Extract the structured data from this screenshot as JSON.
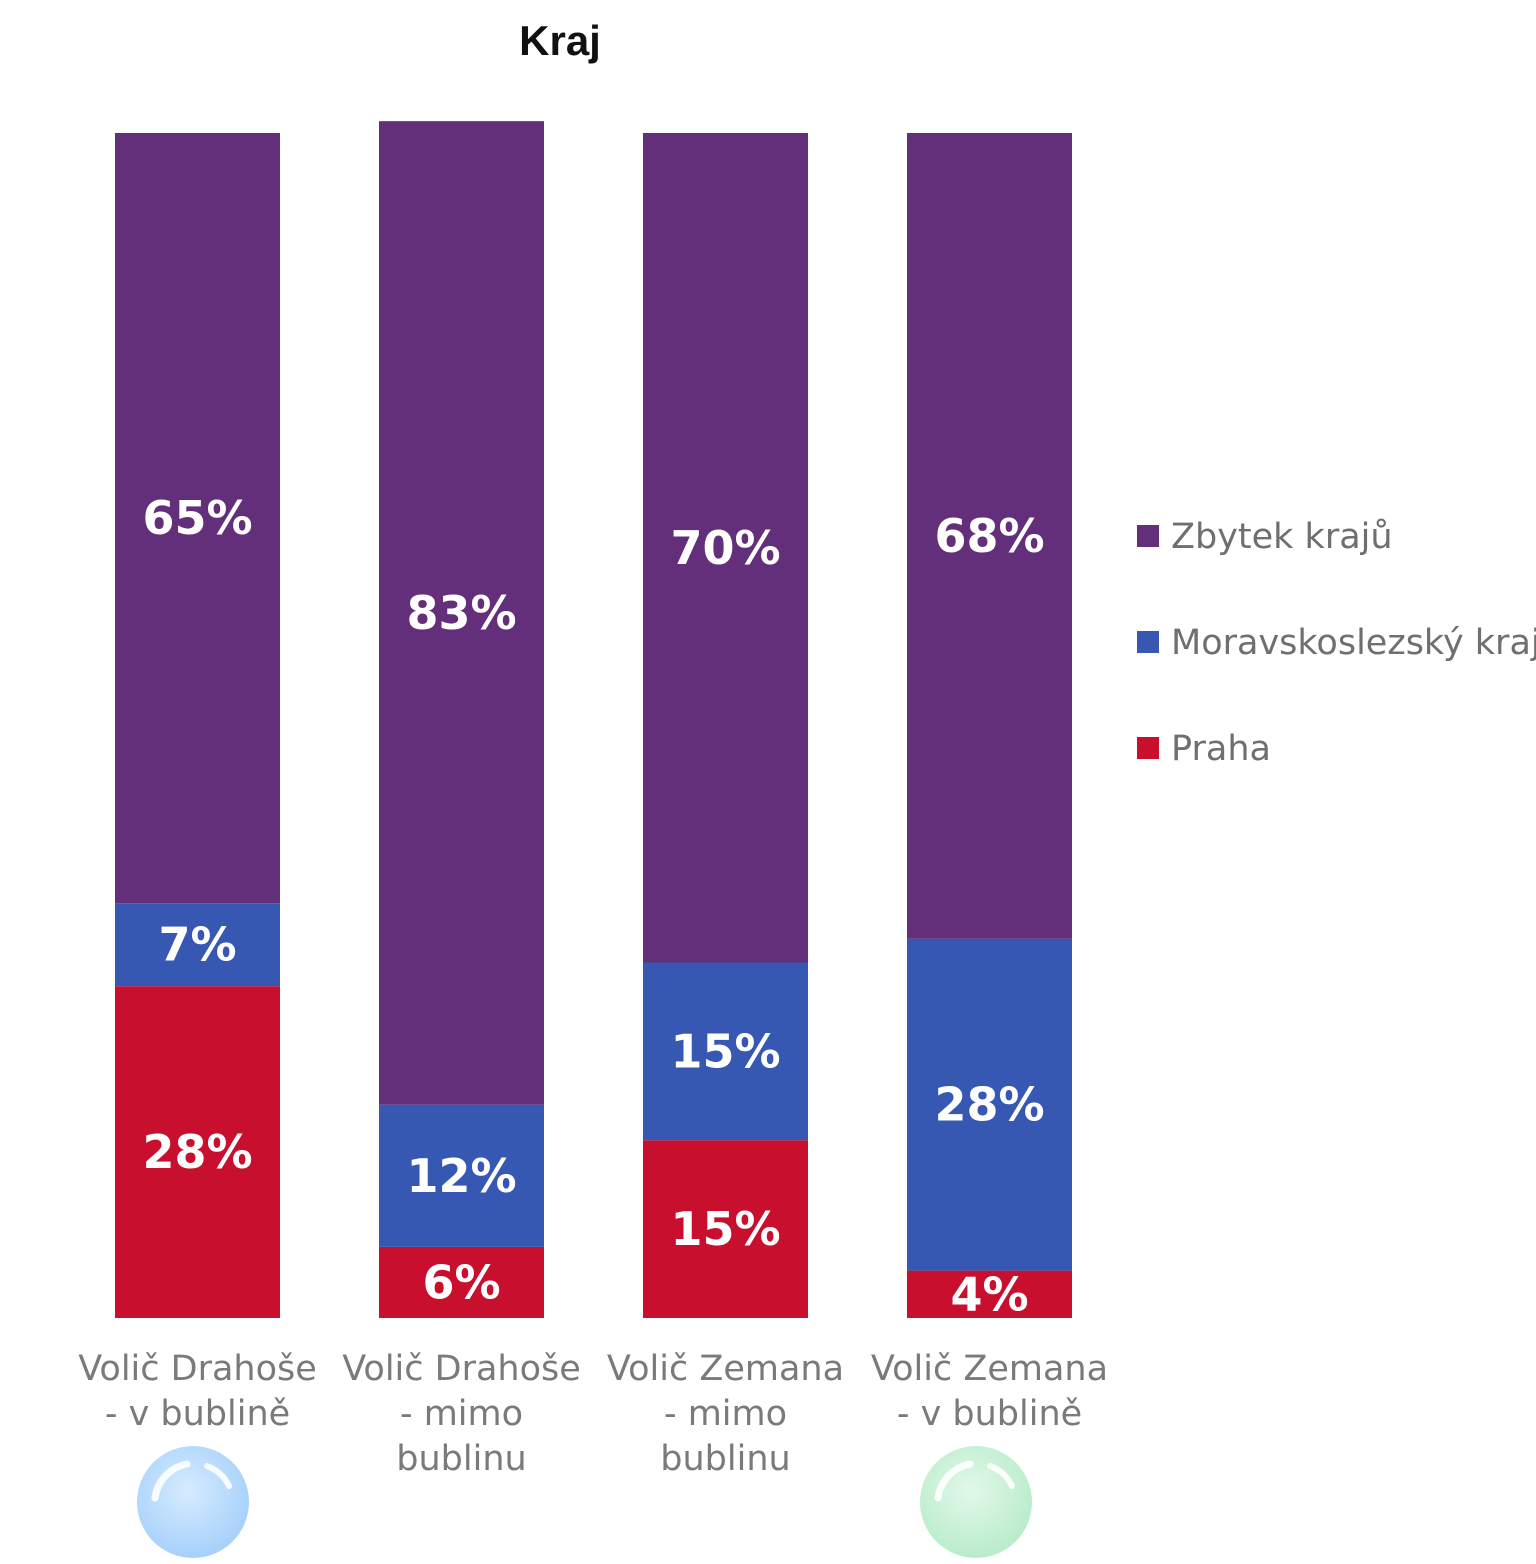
{
  "chart_data": {
    "type": "bar",
    "stacked": true,
    "title": "Kraj",
    "categories": [
      [
        "Volič Drahoše",
        "- v bublině"
      ],
      [
        "Volič Drahoše",
        "- mimo",
        "bublinu"
      ],
      [
        "Volič Zemana",
        "- mimo",
        "bublinu"
      ],
      [
        "Volič Zemana",
        "-  v bublině"
      ]
    ],
    "series": [
      {
        "name": "Praha",
        "color": "#c8102e",
        "values": [
          28,
          6,
          15,
          4
        ]
      },
      {
        "name": "Moravskoslezský kraj",
        "color": "#3658b3",
        "values": [
          7,
          12,
          15,
          28
        ]
      },
      {
        "name": "Zbytek krajů",
        "color": "#642f7a",
        "values": [
          65,
          83,
          70,
          68
        ]
      }
    ],
    "ylim": [
      0,
      100
    ],
    "legend": {
      "placement": "right",
      "order": [
        "Zbytek krajů",
        "Moravskoslezský kraj",
        "Praha"
      ]
    },
    "grid": false,
    "bubbles": [
      {
        "category_index": 0,
        "icon": "blue-bubble-icon",
        "color": "#b3d9ff"
      },
      {
        "category_index": 3,
        "icon": "green-bubble-icon",
        "color": "#c3efd3"
      }
    ]
  }
}
